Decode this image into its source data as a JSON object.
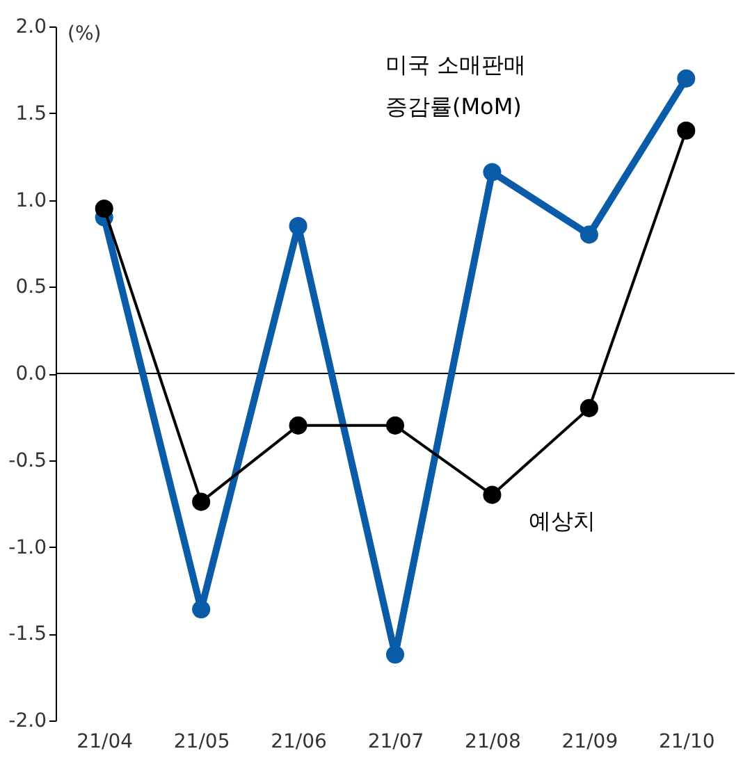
{
  "chart_data": {
    "type": "line",
    "ylabel": "(%)",
    "categories": [
      "21/04",
      "21/05",
      "21/06",
      "21/07",
      "21/08",
      "21/09",
      "21/10"
    ],
    "series": [
      {
        "name": "미국 소매판매 증감률(MoM)",
        "color": "#0a5ca8",
        "values": [
          0.9,
          -1.36,
          0.85,
          -1.62,
          1.16,
          0.8,
          1.7
        ]
      },
      {
        "name": "예상치",
        "color": "#000000",
        "values": [
          0.95,
          -0.74,
          -0.3,
          -0.3,
          -0.7,
          -0.2,
          1.4
        ]
      }
    ],
    "ylim": [
      -2.0,
      2.0
    ],
    "yticks": [
      {
        "value": -2,
        "label": "-2.0"
      },
      {
        "value": -1.5,
        "label": "-1.5"
      },
      {
        "value": -1,
        "label": "-1.0"
      },
      {
        "value": -0.5,
        "label": "-0.5"
      },
      {
        "value": 0,
        "label": "0.0"
      },
      {
        "value": 0.5,
        "label": "0.5"
      },
      {
        "value": 1,
        "label": "1.0"
      },
      {
        "value": 1.5,
        "label": "1.5"
      },
      {
        "value": 2,
        "label": "2.0"
      }
    ],
    "ref_lines": [
      {
        "axis": "y",
        "value": 0
      }
    ],
    "marker": "circle",
    "line_style": "solid",
    "grid": false
  }
}
